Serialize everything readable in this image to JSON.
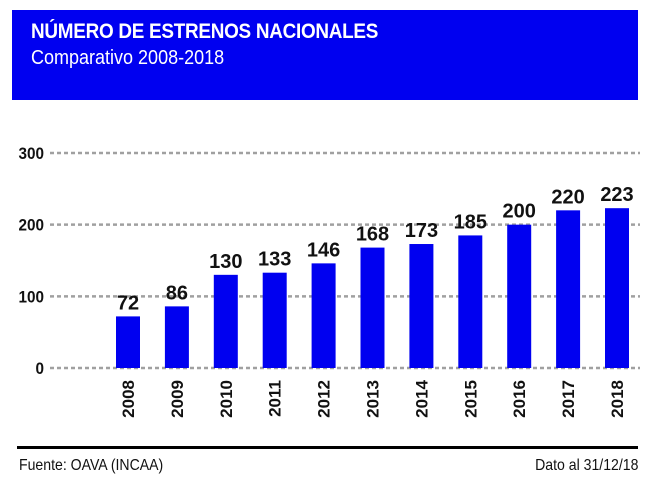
{
  "header": {
    "title": "NÚMERO DE ESTRENOS NACIONALES",
    "subtitle": "Comparativo 2008-2018",
    "background": "#0000f0"
  },
  "footer": {
    "source": "Fuente: OAVA (INCAA)",
    "date_note": "Dato al 31/12/18"
  },
  "chart_data": {
    "type": "bar",
    "title": "NÚMERO DE ESTRENOS NACIONALES",
    "subtitle": "Comparativo 2008-2018",
    "xlabel": "",
    "ylabel": "",
    "categories": [
      "2008",
      "2009",
      "2010",
      "2011",
      "2012",
      "2013",
      "2014",
      "2015",
      "2016",
      "2017",
      "2018"
    ],
    "values": [
      72,
      86,
      130,
      133,
      146,
      168,
      173,
      185,
      200,
      220,
      223
    ],
    "data_labels": [
      "72",
      "86",
      "130",
      "133",
      "146",
      "168",
      "173",
      "185",
      "200",
      "220",
      "223"
    ],
    "ylim": [
      0,
      300
    ],
    "yticks": [
      0,
      100,
      200,
      300
    ],
    "ytick_labels": [
      "0",
      "100",
      "200",
      "300"
    ],
    "grid": true,
    "grid_style": "dotted",
    "legend": "none",
    "bar_color": "#0000f0",
    "grid_color": "#a0a0a0"
  }
}
